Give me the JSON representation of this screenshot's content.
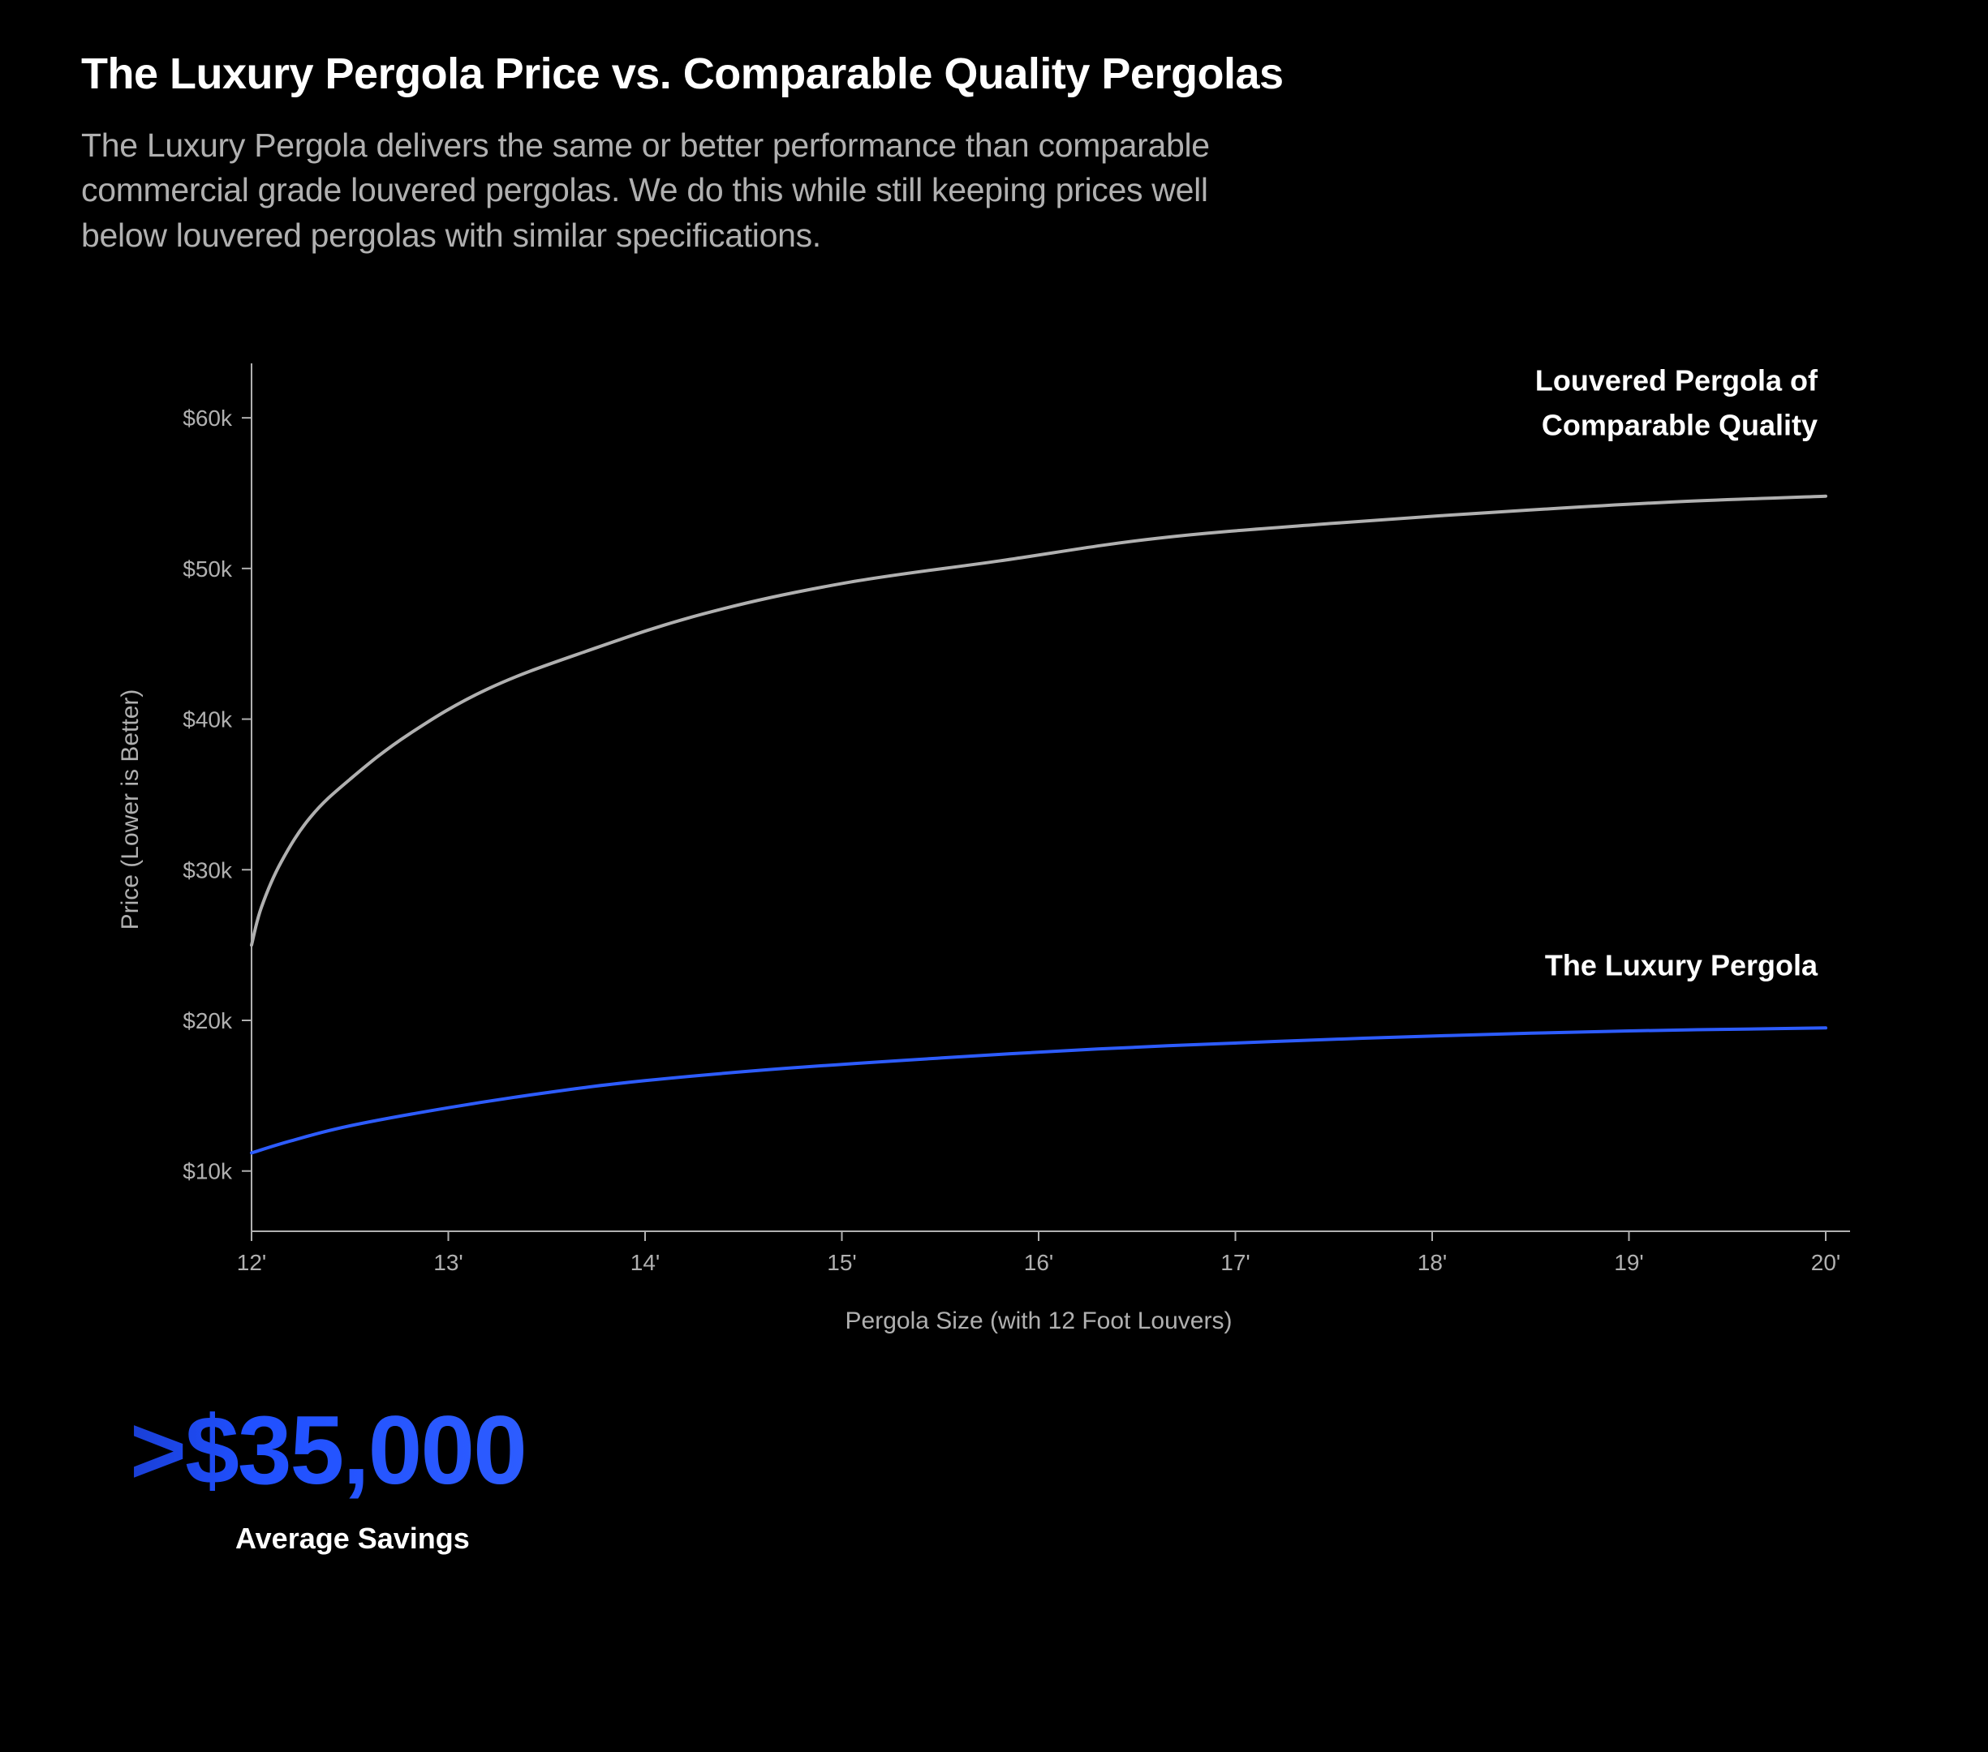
{
  "header": {
    "title": "The Luxury Pergola Price vs. Comparable Quality Pergolas",
    "subtitle": "The Luxury Pergola delivers the same or better performance than comparable commercial grade louvered pergolas. We do this while still keeping prices well below louvered pergolas with similar specifications."
  },
  "chart": {
    "type": "line",
    "background_color": "#000000",
    "axis_color": "#b0b0b0",
    "tick_fontsize": 28,
    "axis_title_fontsize": 30,
    "series_label_fontsize": 36,
    "line_width": 4,
    "x": {
      "label": "Pergola Size (with 12 Foot Louvers)",
      "ticks": [
        "12'",
        "13'",
        "14'",
        "15'",
        "16'",
        "17'",
        "18'",
        "19'",
        "20'"
      ],
      "min": 12,
      "max": 20
    },
    "y": {
      "label": "Price (Lower is Better)",
      "ticks": [
        "$10k",
        "$20k",
        "$30k",
        "$40k",
        "$50k",
        "$60k"
      ],
      "tick_values": [
        10,
        20,
        30,
        40,
        50,
        60
      ],
      "min": 6,
      "max": 62
    },
    "series": [
      {
        "name": "comparable",
        "label_line1": "Louvered Pergola of",
        "label_line2": "Comparable Quality",
        "color": "#b0b0b0",
        "points": [
          [
            12.0,
            25.0
          ],
          [
            12.05,
            27.5
          ],
          [
            12.15,
            30.5
          ],
          [
            12.3,
            33.5
          ],
          [
            12.5,
            36.0
          ],
          [
            12.8,
            39.0
          ],
          [
            13.2,
            42.0
          ],
          [
            13.7,
            44.5
          ],
          [
            14.3,
            47.0
          ],
          [
            15.0,
            49.0
          ],
          [
            15.8,
            50.5
          ],
          [
            16.6,
            52.0
          ],
          [
            17.5,
            53.0
          ],
          [
            18.4,
            53.8
          ],
          [
            19.2,
            54.4
          ],
          [
            20.0,
            54.8
          ]
        ]
      },
      {
        "name": "luxury",
        "label": "The Luxury Pergola",
        "color": "#2d5cff",
        "points": [
          [
            12.0,
            11.2
          ],
          [
            12.2,
            12.0
          ],
          [
            12.5,
            13.0
          ],
          [
            13.0,
            14.2
          ],
          [
            13.5,
            15.2
          ],
          [
            14.0,
            16.0
          ],
          [
            14.7,
            16.8
          ],
          [
            15.5,
            17.5
          ],
          [
            16.3,
            18.1
          ],
          [
            17.2,
            18.6
          ],
          [
            18.1,
            19.0
          ],
          [
            19.0,
            19.3
          ],
          [
            20.0,
            19.5
          ]
        ]
      }
    ]
  },
  "savings": {
    "amount": ">$35,000",
    "label": "Average Savings",
    "gradient_start": "#1a3fd6",
    "gradient_end": "#2d5cff"
  }
}
